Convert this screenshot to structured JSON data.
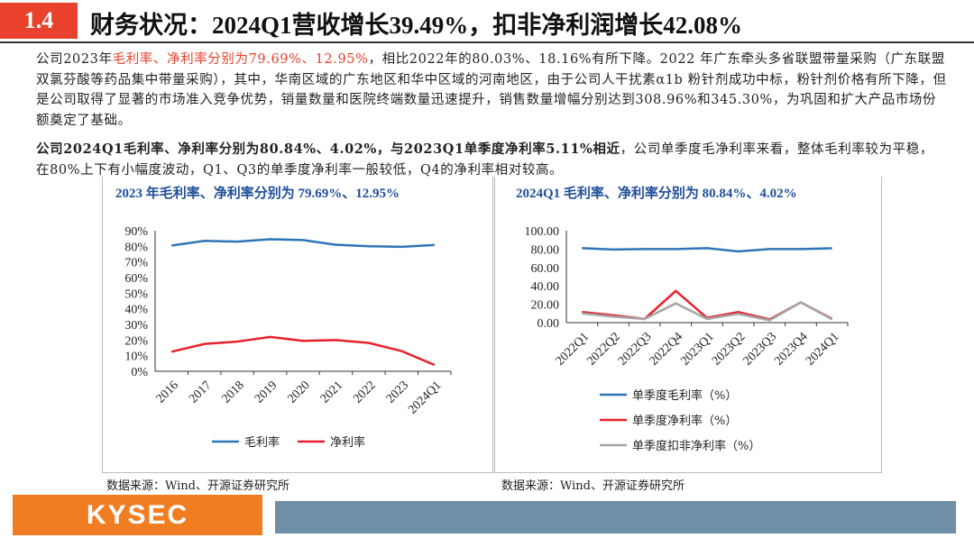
{
  "header": {
    "section": "1.4",
    "title": "财务状况：2024Q1营收增长39.49%，扣非净利润增长42.08%"
  },
  "paragraphs": {
    "p1_a": "公司2023年",
    "p1_b": "毛利率、净利率分别为79.69%、12.95%",
    "p1_c": "，相比2022年的80.03%、18.16%有所下降。2022 年广东牵头多省联盟带量采购（广东联盟双氯芬酸等药品集中带量采购），其中，华南区域的广东地区和华中区域的河南地区，由于公司人干扰素α1b 粉针剂成功中标，粉针剂价格有所下降，但是公司取得了显著的市场准入竞争优势，销量数量和医院终端数量迅速提升，销售数量增幅分别达到308.96%和345.30%，为巩固和扩大产品市场份额奠定了基础。",
    "p2_a": "公司2024Q1毛利率、净利率分别为80.84%、4.02%，与2023Q1单季度净利率5.11%相近",
    "p2_b": "，公司单季度毛净利率来看，整体毛利率较为平稳，在80%上下有小幅度波动，Q1、Q3的单季度净利率一般较低，Q4的净利率相对较高。"
  },
  "footer": {
    "logo": "KYSEC"
  },
  "chart_data": [
    {
      "type": "line",
      "title": "2023 年毛利率、净利率分别为 79.69%、12.95%",
      "source": "数据来源：Wind、开源证券研究所",
      "categories": [
        "2016",
        "2017",
        "2018",
        "2019",
        "2020",
        "2021",
        "2022",
        "2023",
        "2024Q1"
      ],
      "ylim": [
        0,
        90
      ],
      "yticks": [
        "0%",
        "10%",
        "20%",
        "30%",
        "40%",
        "50%",
        "60%",
        "70%",
        "80%",
        "90%"
      ],
      "legend": "bottom",
      "grid": false,
      "series": [
        {
          "name": "毛利率",
          "color": "#2e75b6",
          "values": [
            80.5,
            83.5,
            83,
            84.5,
            84,
            81,
            80.03,
            79.69,
            80.84
          ]
        },
        {
          "name": "净利率",
          "color": "#e8202a",
          "values": [
            12.5,
            17.5,
            19,
            22,
            19.5,
            20,
            18.16,
            12.95,
            4.02
          ]
        }
      ]
    },
    {
      "type": "line",
      "title": "2024Q1 毛利率、净利率分别为 80.84%、4.02%",
      "source": "数据来源：Wind、开源证券研究所",
      "categories": [
        "2022Q1",
        "2022Q2",
        "2022Q3",
        "2022Q4",
        "2023Q1",
        "2023Q2",
        "2023Q3",
        "2023Q4",
        "2024Q1"
      ],
      "ylim": [
        0,
        100
      ],
      "yticks": [
        "0.00",
        "20.00",
        "40.00",
        "60.00",
        "80.00",
        "100.00"
      ],
      "legend": "bottom",
      "grid": false,
      "series": [
        {
          "name": "单季度毛利率（%）",
          "color": "#2e75b6",
          "values": [
            81,
            79.5,
            80,
            80,
            81,
            77.5,
            80,
            80,
            80.84
          ]
        },
        {
          "name": "单季度净利率（%）",
          "color": "#e8202a",
          "values": [
            11.5,
            8,
            4,
            34.5,
            5.11,
            11.5,
            3.5,
            22,
            4.02
          ]
        },
        {
          "name": "单季度扣非净利率（%）",
          "color": "#a6a6a6",
          "values": [
            10,
            6.5,
            4,
            21,
            4,
            9.5,
            2.5,
            22,
            3.5
          ]
        }
      ]
    }
  ]
}
